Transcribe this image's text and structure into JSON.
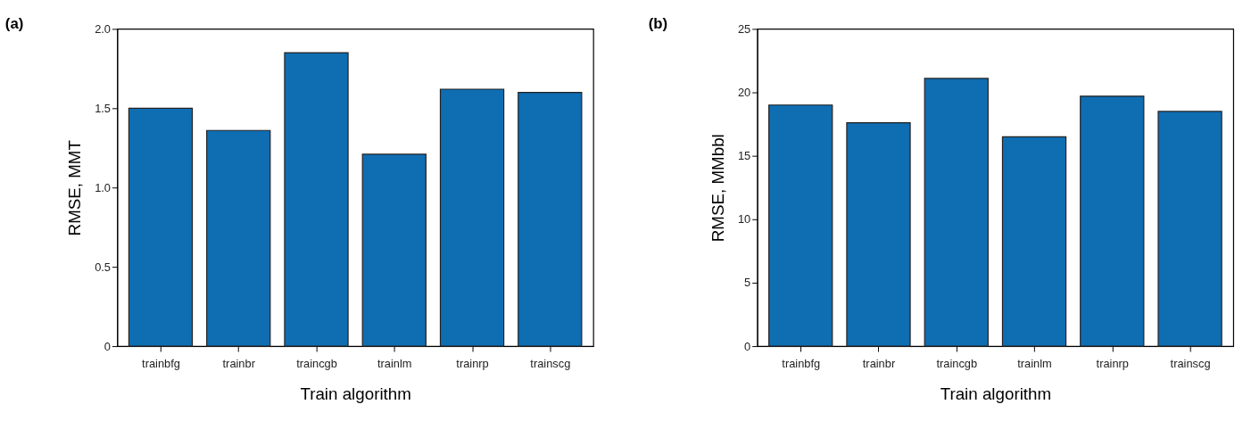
{
  "chart_data": [
    {
      "type": "bar",
      "title": "(a)",
      "xlabel": "Train algorithm",
      "ylabel": "RMSE, MMT",
      "categories": [
        "trainbfg",
        "trainbr",
        "traincgb",
        "trainlm",
        "trainrp",
        "trainscg"
      ],
      "values": [
        1.5,
        1.36,
        1.85,
        1.21,
        1.62,
        1.6
      ],
      "color": "#0f6db2",
      "ylim": [
        0,
        2.0
      ],
      "yticks": [
        0,
        {
          "value": 0.5,
          "label": "0.5"
        },
        {
          "value": 1.0,
          "label": "1.0"
        },
        {
          "value": 1.5,
          "label": "1.5"
        },
        {
          "value": 2.0,
          "label": "2.0"
        }
      ],
      "grid": false
    },
    {
      "type": "bar",
      "title": "(b)",
      "xlabel": "Train algorithm",
      "ylabel": "RMSE, MMbbl",
      "categories": [
        "trainbfg",
        "trainbr",
        "traincgb",
        "trainlm",
        "trainrp",
        "trainscg"
      ],
      "values": [
        19.0,
        17.6,
        21.1,
        16.5,
        19.7,
        18.5
      ],
      "color": "#0f6db2",
      "ylim": [
        0,
        25
      ],
      "yticks": [
        0,
        5,
        10,
        15,
        20,
        25
      ],
      "grid": false
    }
  ]
}
